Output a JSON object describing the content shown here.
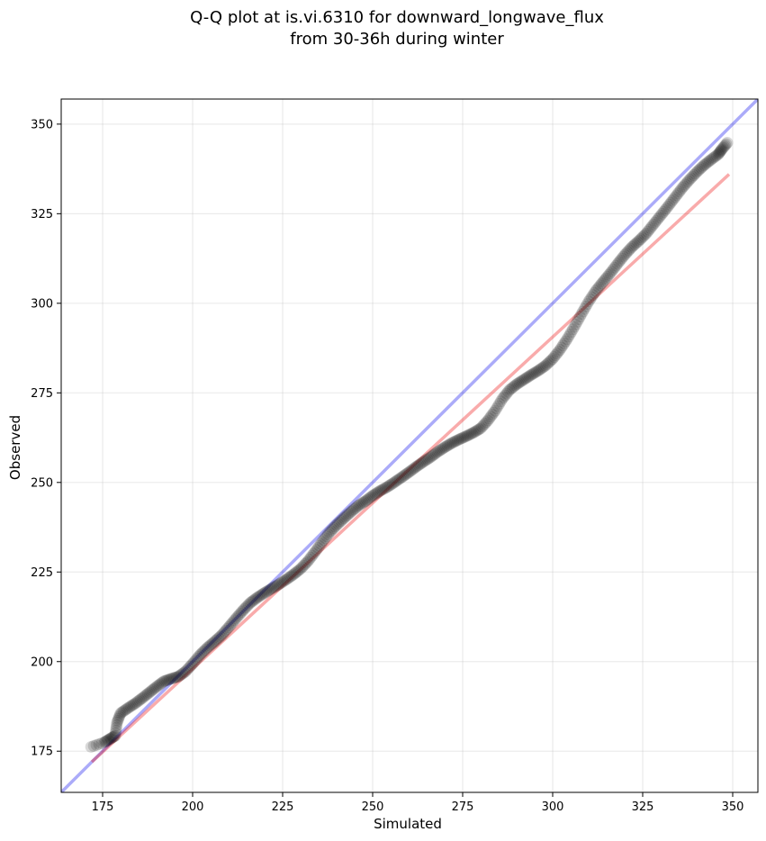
{
  "chart_data": {
    "type": "scatter",
    "title_line1": "Q-Q plot at is.vi.6310 for downward_longwave_flux",
    "title_line2": "from 30-36h during winter",
    "xlabel": "Simulated",
    "ylabel": "Observed",
    "xlim": [
      163.5,
      357
    ],
    "ylim": [
      163.5,
      357
    ],
    "xticks": [
      175,
      200,
      225,
      250,
      275,
      300,
      325,
      350
    ],
    "yticks": [
      175,
      200,
      225,
      250,
      275,
      300,
      325,
      350
    ],
    "grid": true,
    "reference_line": {
      "name": "1:1",
      "color": "#0000ee",
      "alpha": 0.33,
      "from": [
        163.5,
        163.5
      ],
      "to": [
        357,
        357
      ]
    },
    "fit_line": {
      "color": "#ee0000",
      "alpha": 0.33,
      "from": [
        172,
        172
      ],
      "to": [
        349,
        336
      ]
    },
    "point_color": "#000000",
    "point_alpha": 0.15,
    "quantiles": [
      [
        171.8,
        176.2
      ],
      [
        175.5,
        177.5
      ],
      [
        177.0,
        178.4
      ],
      [
        178.5,
        179.3
      ],
      [
        179.0,
        183.0
      ],
      [
        180.0,
        185.6
      ],
      [
        182.0,
        187.0
      ],
      [
        184.0,
        188.3
      ],
      [
        186.0,
        189.8
      ],
      [
        188.0,
        191.4
      ],
      [
        190.0,
        193.0
      ],
      [
        192.0,
        194.5
      ],
      [
        194.0,
        195.2
      ],
      [
        196.0,
        195.8
      ],
      [
        198.0,
        197.2
      ],
      [
        200.0,
        199.4
      ],
      [
        202.0,
        201.8
      ],
      [
        204.0,
        203.8
      ],
      [
        206.0,
        205.5
      ],
      [
        208.0,
        207.3
      ],
      [
        210.0,
        209.6
      ],
      [
        212.0,
        212.0
      ],
      [
        214.0,
        214.3
      ],
      [
        216.0,
        216.4
      ],
      [
        218.0,
        217.9
      ],
      [
        220.0,
        219.2
      ],
      [
        222.0,
        220.4
      ],
      [
        224.0,
        221.6
      ],
      [
        226.0,
        222.9
      ],
      [
        228.0,
        224.3
      ],
      [
        230.0,
        225.9
      ],
      [
        232.0,
        228.0
      ],
      [
        234.0,
        230.6
      ],
      [
        236.0,
        233.4
      ],
      [
        238.0,
        236.0
      ],
      [
        240.0,
        238.1
      ],
      [
        242.0,
        240.0
      ],
      [
        244.0,
        241.8
      ],
      [
        246.0,
        243.5
      ],
      [
        248.0,
        244.8
      ],
      [
        250.0,
        246.3
      ],
      [
        252.0,
        247.6
      ],
      [
        254.0,
        248.7
      ],
      [
        256.0,
        250.0
      ],
      [
        258.0,
        251.4
      ],
      [
        260.0,
        252.8
      ],
      [
        262.0,
        254.3
      ],
      [
        264.0,
        255.7
      ],
      [
        266.0,
        257.0
      ],
      [
        268.0,
        258.5
      ],
      [
        270.0,
        259.8
      ],
      [
        272.0,
        261.0
      ],
      [
        274.0,
        262.0
      ],
      [
        276.0,
        262.9
      ],
      [
        278.0,
        263.9
      ],
      [
        280.0,
        265.1
      ],
      [
        282.0,
        267.3
      ],
      [
        284.0,
        270.0
      ],
      [
        286.0,
        273.3
      ],
      [
        288.0,
        275.8
      ],
      [
        290.0,
        277.4
      ],
      [
        292.0,
        278.7
      ],
      [
        294.0,
        280.0
      ],
      [
        296.0,
        281.2
      ],
      [
        298.0,
        282.6
      ],
      [
        300.0,
        284.5
      ],
      [
        302.0,
        287.0
      ],
      [
        304.0,
        290.0
      ],
      [
        306.0,
        293.4
      ],
      [
        308.0,
        297.0
      ],
      [
        310.0,
        300.5
      ],
      [
        312.0,
        303.5
      ],
      [
        314.0,
        306.0
      ],
      [
        316.0,
        308.4
      ],
      [
        318.0,
        311.0
      ],
      [
        320.0,
        313.5
      ],
      [
        322.0,
        315.7
      ],
      [
        324.0,
        317.5
      ],
      [
        326.0,
        319.5
      ],
      [
        328.0,
        322.0
      ],
      [
        330.0,
        324.5
      ],
      [
        332.0,
        327.0
      ],
      [
        334.0,
        329.6
      ],
      [
        336.0,
        332.2
      ],
      [
        338.0,
        334.5
      ],
      [
        340.0,
        336.6
      ],
      [
        342.0,
        338.5
      ],
      [
        344.0,
        340.1
      ],
      [
        346.0,
        341.6
      ],
      [
        347.0,
        343.0
      ],
      [
        348.5,
        344.8
      ]
    ]
  }
}
